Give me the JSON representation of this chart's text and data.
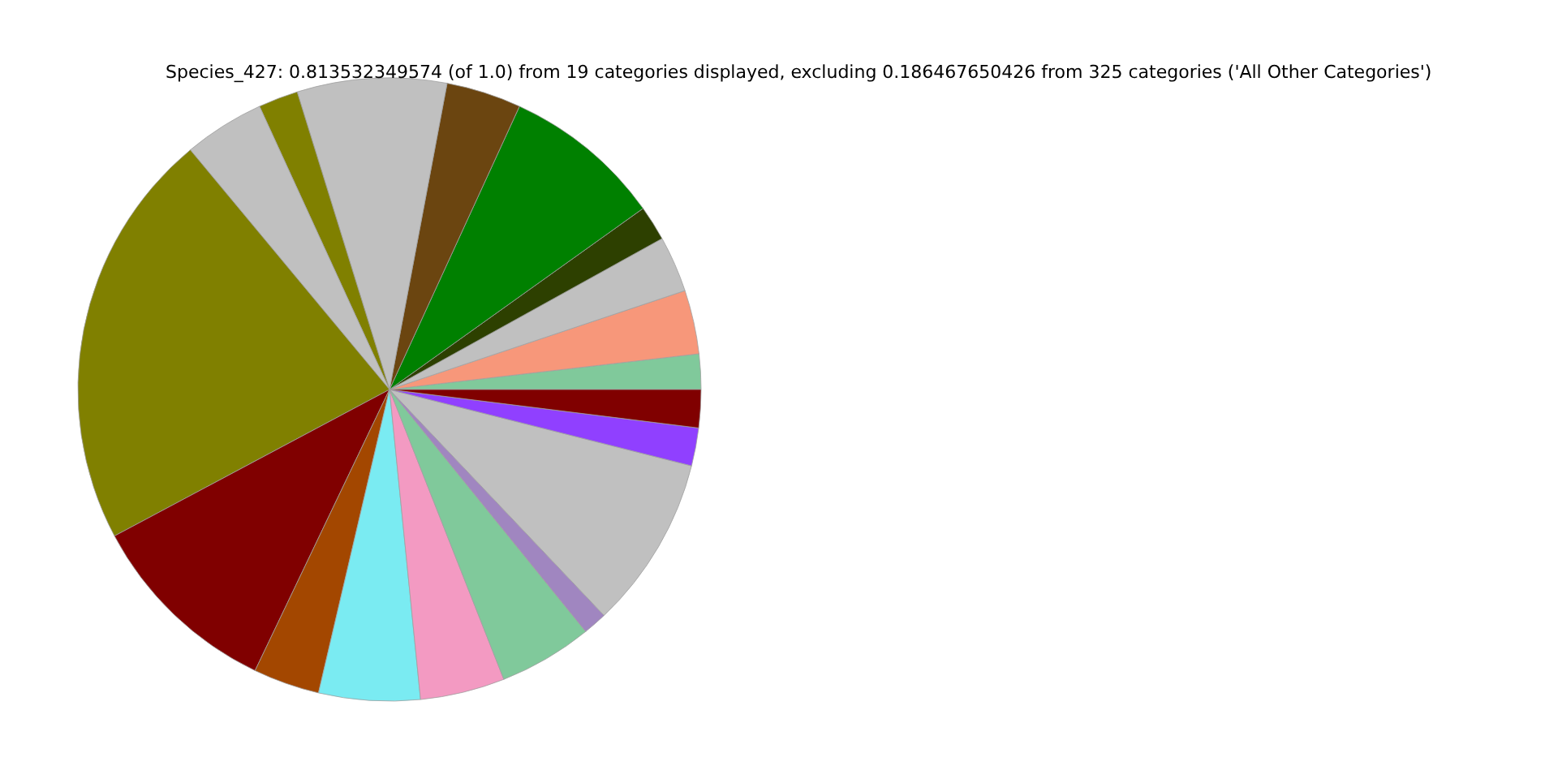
{
  "chart_data": {
    "type": "pie",
    "title": "Species_427: 0.813532349574 (of 1.0) from 19 categories displayed, excluding 0.186467650426 from 325 categories ('All Other Categories')",
    "categories": [
      null,
      null,
      null,
      null,
      null,
      null,
      null,
      null,
      null,
      null,
      null,
      null,
      null,
      null,
      null,
      null,
      null,
      null,
      null
    ],
    "values": [
      1.83,
      3.31,
      2.91,
      1.82,
      8.28,
      3.89,
      7.75,
      2.06,
      4.19,
      21.75,
      10.11,
      3.44,
      5.25,
      4.39,
      4.86,
      1.25,
      8.97,
      1.97,
      1.97
    ],
    "colors": [
      "#80c99b",
      "#f7977a",
      "#c0c0c0",
      "#2d4000",
      "#008000",
      "#6b4510",
      "#c0c0c0",
      "#808000",
      "#c0c0c0",
      "#808000",
      "#800000",
      "#a34700",
      "#7aebf2",
      "#f39ac2",
      "#80c99b",
      "#a086c0",
      "#c0c0c0",
      "#9040ff",
      "#800000"
    ]
  }
}
